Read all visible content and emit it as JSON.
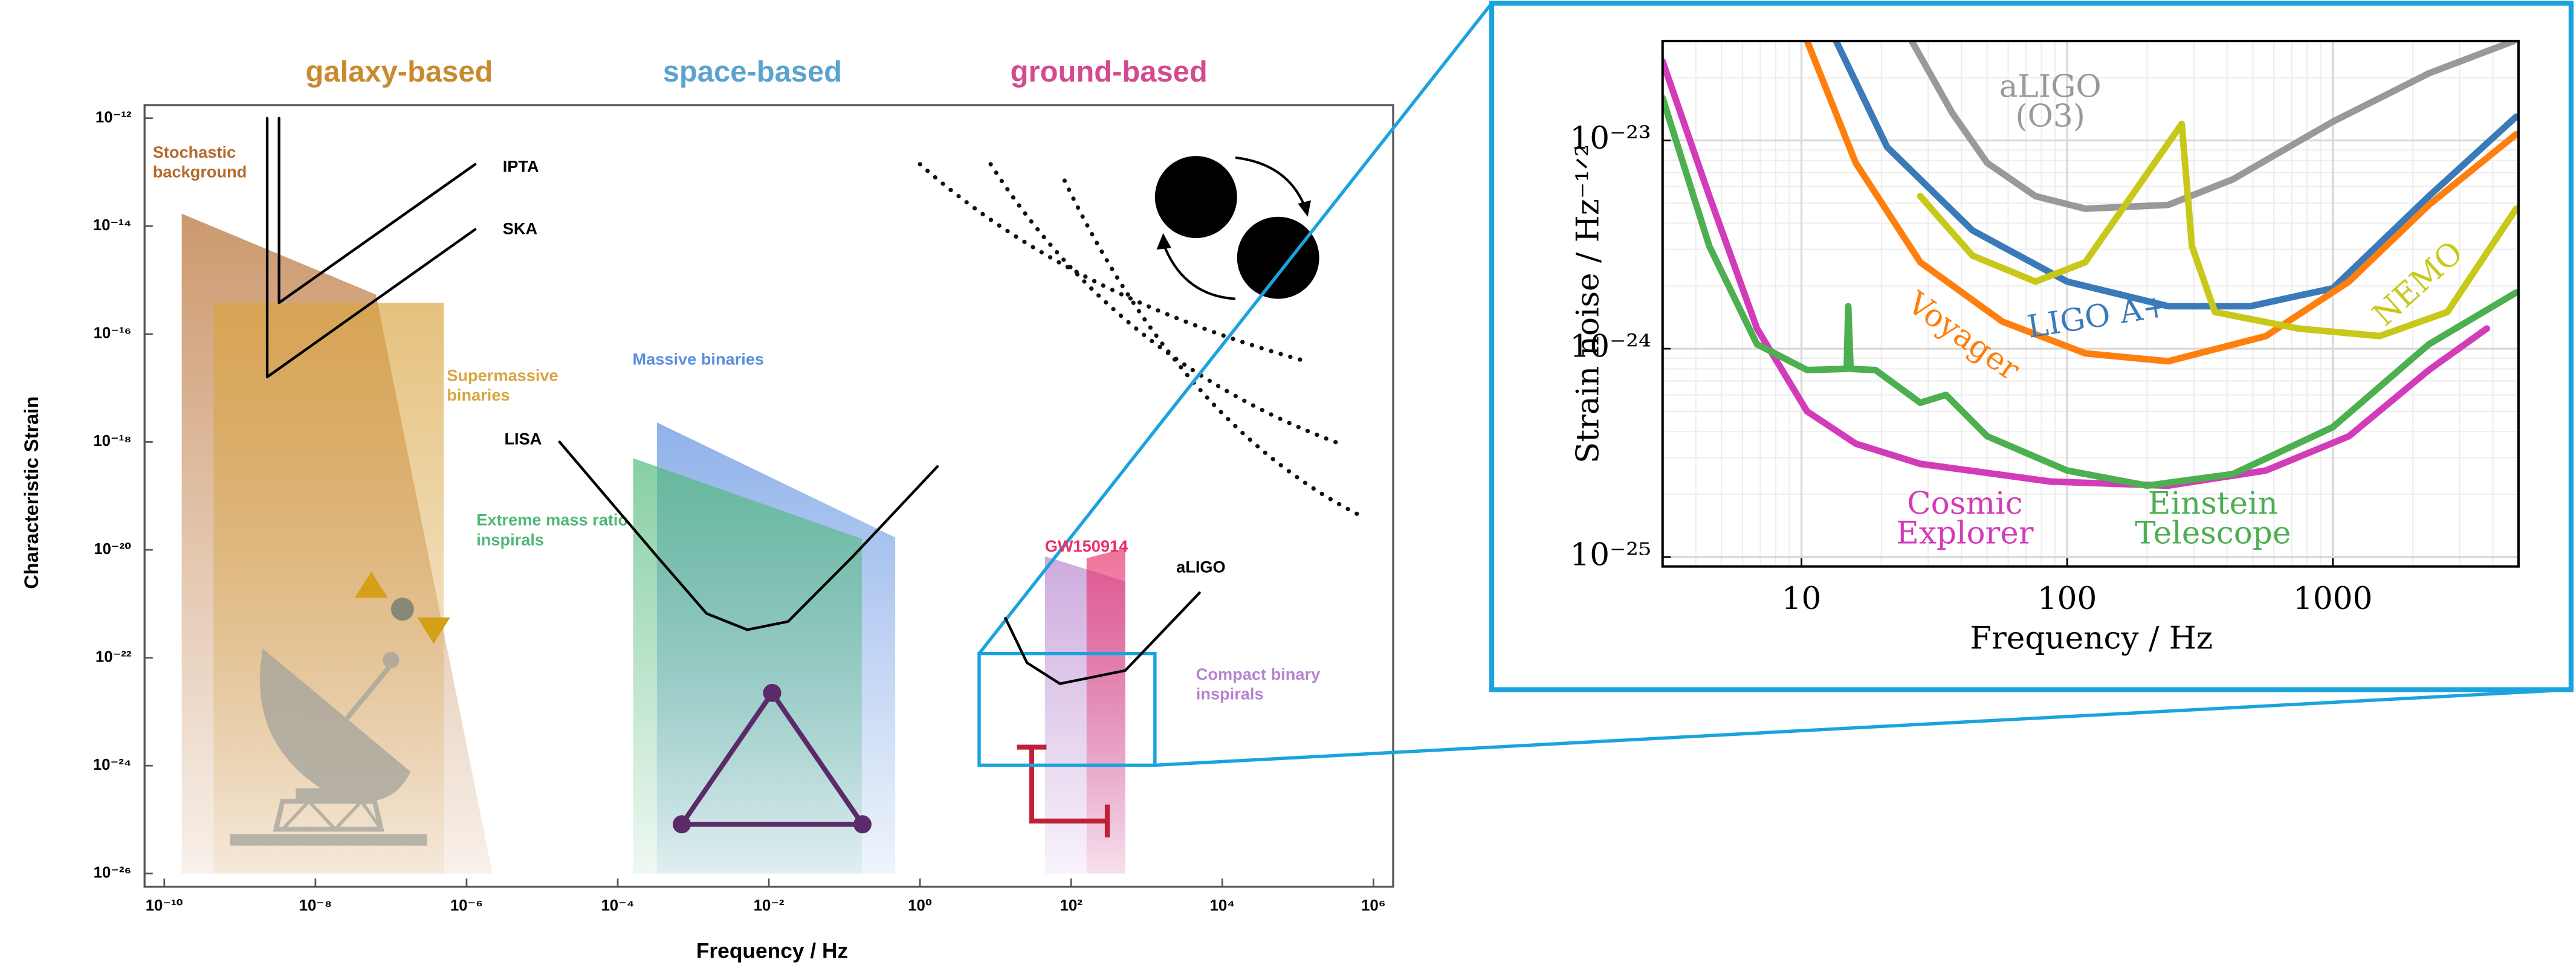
{
  "chart_data": [
    {
      "type": "area",
      "headers": [
        {
          "text": "galaxy-based",
          "color": "#c98a2e"
        },
        {
          "text": "space-based",
          "color": "#5ba3cf"
        },
        {
          "text": "ground-based",
          "color": "#d4498f"
        }
      ],
      "xlabel": "Frequency / Hz",
      "ylabel": "Characteristic Strain",
      "xscale": "log",
      "yscale": "log",
      "xlim": [
        1e-10,
        1000000.0
      ],
      "ylim": [
        1e-26,
        1e-12
      ],
      "xticks": [
        {
          "value": 1e-10,
          "label": "10⁻¹⁰"
        },
        {
          "value": 1e-08,
          "label": "10⁻⁸"
        },
        {
          "value": 1e-06,
          "label": "10⁻⁶"
        },
        {
          "value": 0.0001,
          "label": "10⁻⁴"
        },
        {
          "value": 0.01,
          "label": "10⁻²"
        },
        {
          "value": 1,
          "label": "10⁰"
        },
        {
          "value": 100,
          "label": "10²"
        },
        {
          "value": 10000,
          "label": "10⁴"
        },
        {
          "value": 1000000,
          "label": "10⁶"
        }
      ],
      "yticks": [
        {
          "value": 1e-12,
          "label": "10⁻¹²"
        },
        {
          "value": 1e-14,
          "label": "10⁻¹⁴"
        },
        {
          "value": 1e-16,
          "label": "10⁻¹⁶"
        },
        {
          "value": 1e-18,
          "label": "10⁻¹⁸"
        },
        {
          "value": 1e-20,
          "label": "10⁻²⁰"
        },
        {
          "value": 1e-22,
          "label": "10⁻²²"
        },
        {
          "value": 1e-24,
          "label": "10⁻²⁴"
        },
        {
          "value": 1e-26,
          "label": "10⁻²⁶"
        }
      ],
      "areas": [
        {
          "name": "Stochastic background",
          "color": "#b5692a",
          "x": [
            1.7e-10,
            6.3e-08,
            2.2e-06
          ],
          "values": [
            1.7e-14,
            5.4e-16,
            1e-26
          ]
        },
        {
          "name": "Supermassive binaries",
          "color": "#d9a440",
          "x": [
            4.5e-10,
            5e-07
          ],
          "values": [
            3.8e-16,
            3.8e-16
          ]
        },
        {
          "name": "Massive binaries",
          "color": "#5b8ee0",
          "x": [
            0.00033,
            0.47
          ],
          "values": [
            2.3e-18,
            1.7e-20
          ]
        },
        {
          "name": "Extreme mass ratio inspirals",
          "color": "#4fb878",
          "x": [
            0.00016,
            0.17
          ],
          "values": [
            5e-19,
            1.6e-20
          ]
        },
        {
          "name": "Compact binary inspirals",
          "color": "#b784cf",
          "x": [
            45,
            520
          ],
          "values": [
            7.6e-21,
            2.6e-21
          ]
        },
        {
          "name": "GW150914",
          "color": "#e8306a",
          "x": [
            160,
            520
          ],
          "values": [
            7e-21,
            1.07e-20
          ]
        }
      ],
      "series": [
        {
          "name": "IPTA",
          "color": "#000000",
          "x": [
            3.3e-09,
            3.3e-09,
            1.3e-06
          ],
          "values": [
            1e-12,
            3.8e-16,
            1.4e-13
          ]
        },
        {
          "name": "SKA",
          "color": "#000000",
          "x": [
            2.3e-09,
            2.3e-09,
            1.3e-06
          ],
          "values": [
            1e-12,
            1.6e-17,
            8.7e-15
          ]
        },
        {
          "name": "LISA",
          "color": "#000000",
          "x": [
            1.7e-05,
            0.00033,
            0.0015,
            0.0052,
            0.018,
            0.13,
            1.7
          ],
          "values": [
            1e-18,
            7.6e-21,
            6.6e-22,
            3.3e-22,
            4.7e-22,
            7.6e-21,
            3.5e-19
          ]
        },
        {
          "name": "aLIGO",
          "color": "#000000",
          "x": [
            13.5,
            26,
            71,
            520,
            5000
          ],
          "values": [
            5.4e-22,
            8.1e-23,
            3.3e-23,
            5.8e-23,
            1.6e-21
          ]
        }
      ]
    },
    {
      "type": "line",
      "xlabel": "Frequency / Hz",
      "ylabel": "Strain noise / Hz⁻¹ᐟ²",
      "xscale": "log",
      "yscale": "log",
      "xlim": [
        3,
        5000
      ],
      "ylim": [
        9e-26,
        3e-23
      ],
      "xticks": [
        10,
        100,
        1000
      ],
      "yticks": [
        {
          "value": 1e-25,
          "label": "10⁻²⁵"
        },
        {
          "value": 1e-24,
          "label": "10⁻²⁴"
        },
        {
          "value": 1e-23,
          "label": "10⁻²³"
        }
      ],
      "grid": true,
      "series": [
        {
          "name": "aLIGO (O3)",
          "color": "#999999",
          "x": [
            26,
            37,
            50,
            76,
            117,
            240,
            420,
            1000,
            2300,
            4800
          ],
          "values": [
            3e-23,
            1.35e-23,
            7.8e-24,
            5.4e-24,
            4.7e-24,
            4.9e-24,
            6.5e-24,
            1.23e-23,
            2.1e-23,
            3e-23
          ]
        },
        {
          "name": "LIGO A+",
          "color": "#3a7ab8",
          "x": [
            13.5,
            21,
            44,
            100,
            240,
            490,
            1000,
            2300,
            4900
          ],
          "values": [
            3e-23,
            9.3e-24,
            3.7e-24,
            2.1e-24,
            1.6e-24,
            1.6e-24,
            1.95e-24,
            5.4e-24,
            1.3e-23
          ]
        },
        {
          "name": "Voyager",
          "color": "#ff7f0e",
          "x": [
            10.5,
            16,
            28,
            57,
            117,
            240,
            560,
            1150,
            2300,
            4900
          ],
          "values": [
            3e-23,
            7.8e-24,
            2.6e-24,
            1.35e-24,
            9.5e-25,
            8.7e-25,
            1.15e-24,
            2.1e-24,
            4.9e-24,
            1.07e-23
          ]
        },
        {
          "name": "NEMO",
          "color": "#c8c81a",
          "x": [
            28,
            44,
            76,
            117,
            270,
            295,
            360,
            740,
            1500,
            2700,
            4900
          ],
          "values": [
            5.4e-24,
            2.8e-24,
            2.1e-24,
            2.6e-24,
            1.2e-23,
            3.1e-24,
            1.5e-24,
            1.25e-24,
            1.15e-24,
            1.5e-24,
            4.7e-24
          ]
        },
        {
          "name": "Cosmic Explorer",
          "color": "#d23cb8",
          "x": [
            3,
            4.5,
            6.8,
            10.5,
            16,
            28,
            87,
            240,
            560,
            1150,
            2300,
            3800
          ],
          "values": [
            2.4e-23,
            5.4e-24,
            1.25e-24,
            5e-25,
            3.5e-25,
            2.8e-25,
            2.3e-25,
            2.2e-25,
            2.6e-25,
            3.8e-25,
            7.9e-25,
            1.25e-24
          ]
        },
        {
          "name": "Einstein Telescope",
          "color": "#4caf50",
          "x": [
            3,
            4.5,
            6.8,
            10.5,
            14.8,
            15,
            15.3,
            19,
            28,
            35,
            50,
            100,
            200,
            420,
            1000,
            2300,
            4900
          ],
          "values": [
            1.6e-23,
            3.1e-24,
            1.05e-24,
            7.9e-25,
            8e-25,
            1.6e-24,
            8e-25,
            7.9e-25,
            5.5e-25,
            6e-25,
            3.8e-25,
            2.6e-25,
            2.2e-25,
            2.5e-25,
            4.2e-25,
            1.05e-24,
            1.86e-24
          ]
        }
      ]
    }
  ]
}
